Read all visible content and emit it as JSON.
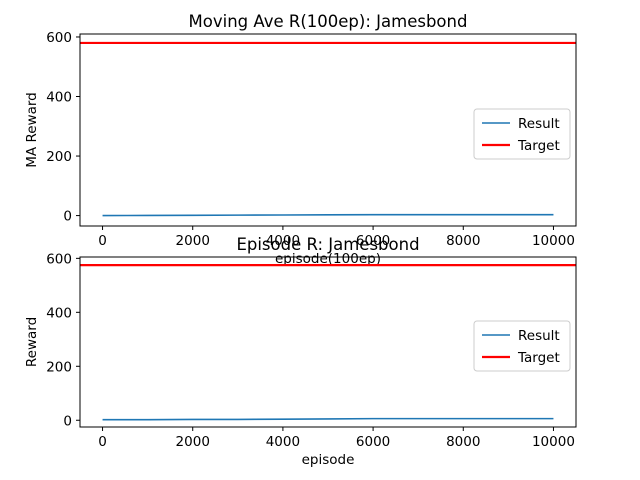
{
  "chart_data": [
    {
      "type": "line",
      "title": "Moving Ave R(100ep): Jamesbond",
      "xlabel": "episode(100ep)",
      "ylabel": "MA Reward",
      "xlim": [
        -500,
        10500
      ],
      "ylim": [
        -35,
        610
      ],
      "xticks": [
        0,
        2000,
        4000,
        6000,
        8000,
        10000
      ],
      "yticks": [
        0,
        200,
        400,
        600
      ],
      "grid": false,
      "legend": "center-right",
      "series": [
        {
          "name": "Result",
          "color": "#1f77b4",
          "x": [
            0,
            1000,
            2000,
            3000,
            4000,
            5000,
            6000,
            7000,
            8000,
            9000,
            10000
          ],
          "values": [
            0,
            0.5,
            1,
            1.5,
            2,
            2.5,
            3,
            3,
            3,
            3,
            3
          ]
        },
        {
          "name": "Target",
          "color": "#ff0000",
          "x": [
            -500,
            10500
          ],
          "values": [
            580,
            580
          ]
        }
      ]
    },
    {
      "type": "line",
      "title": "Episode R: Jamesbond",
      "xlabel": "episode",
      "ylabel": "Reward",
      "xlim": [
        -500,
        10500
      ],
      "ylim": [
        -25,
        605
      ],
      "xticks": [
        0,
        2000,
        4000,
        6000,
        8000,
        10000
      ],
      "yticks": [
        0,
        200,
        400,
        600
      ],
      "grid": false,
      "legend": "center-right",
      "series": [
        {
          "name": "Result",
          "color": "#1f77b4",
          "x": [
            0,
            1000,
            2000,
            3000,
            4000,
            5000,
            6000,
            7000,
            8000,
            9000,
            10000
          ],
          "values": [
            2,
            2,
            3,
            3,
            4,
            5,
            6,
            6,
            6,
            6,
            6
          ]
        },
        {
          "name": "Target",
          "color": "#ff0000",
          "x": [
            -500,
            10500
          ],
          "values": [
            575,
            575
          ]
        }
      ]
    }
  ]
}
